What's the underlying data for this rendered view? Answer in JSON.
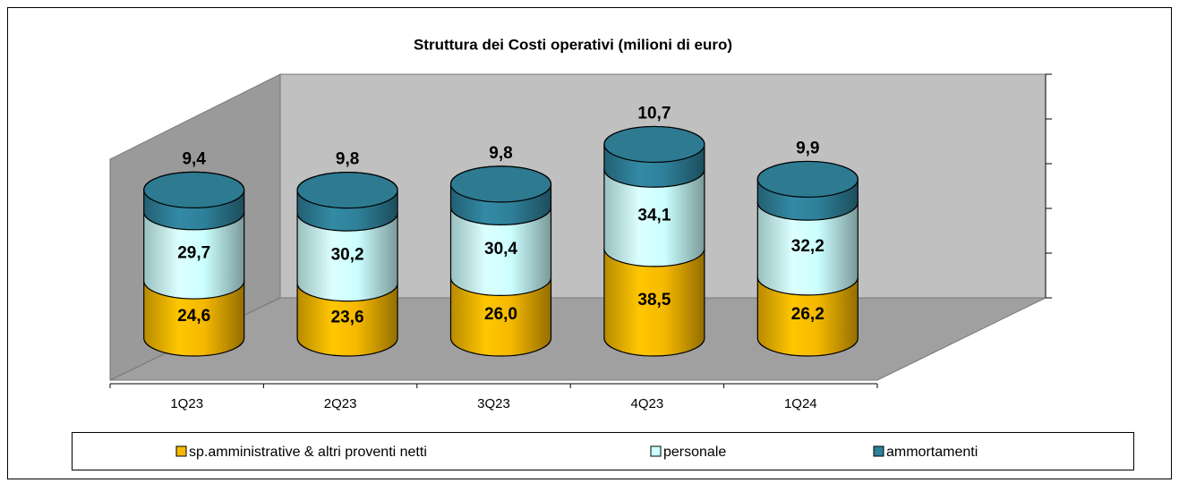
{
  "chart_data": {
    "type": "bar",
    "stacked": true,
    "title": "Struttura dei Costi operativi (milioni di euro)",
    "categories": [
      "1Q23",
      "2Q23",
      "3Q23",
      "4Q23",
      "1Q24"
    ],
    "series": [
      {
        "name": "sp.amministrative & altri proventi netti",
        "color": "#f5b800",
        "values": [
          24.6,
          23.6,
          26.0,
          38.5,
          26.2
        ],
        "value_labels": [
          "24,6",
          "23,6",
          "26,0",
          "38,5",
          "26,2"
        ]
      },
      {
        "name": "personale",
        "color": "#ccffff",
        "values": [
          29.7,
          30.2,
          30.4,
          34.1,
          32.2
        ],
        "value_labels": [
          "29,7",
          "30,2",
          "30,4",
          "34,1",
          "32,2"
        ]
      },
      {
        "name": "ammortamenti",
        "color": "#2f8099",
        "values": [
          9.4,
          9.8,
          9.8,
          10.7,
          9.9
        ],
        "value_labels": [
          "9,4",
          "9,8",
          "9,8",
          "10,7",
          "9,9"
        ]
      }
    ],
    "ylim": [
      0,
      100
    ],
    "yticks": [
      0,
      20,
      40,
      60,
      80,
      100
    ]
  }
}
